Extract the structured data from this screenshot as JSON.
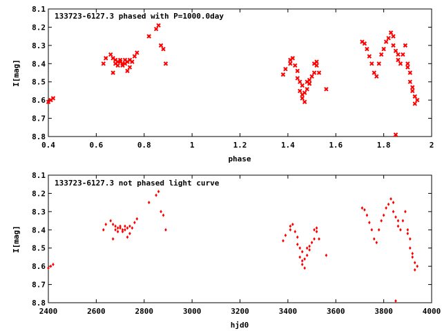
{
  "chart_data": [
    {
      "type": "scatter",
      "title": "133723-6127.3 phased with P=1000.0day",
      "xlabel": "phase",
      "ylabel": "I[mag]",
      "xlim": [
        0.4,
        2.0
      ],
      "ylim": [
        8.1,
        8.8
      ],
      "y_inverted": true,
      "xticks": [
        "0.4",
        "0.6",
        "0.8",
        "1",
        "1.2",
        "1.4",
        "1.6",
        "1.8",
        "2"
      ],
      "yticks": [
        "8.1",
        "8.2",
        "8.3",
        "8.4",
        "8.5",
        "8.6",
        "8.7",
        "8.8"
      ],
      "grid": false,
      "color": "#ff0000",
      "series": [
        {
          "x": [
            0.4,
            0.41,
            0.42,
            0.63,
            0.64,
            0.66,
            0.67,
            0.67,
            0.68,
            0.68,
            0.69,
            0.69,
            0.7,
            0.7,
            0.71,
            0.71,
            0.72,
            0.72,
            0.73,
            0.73,
            0.74,
            0.74,
            0.75,
            0.76,
            0.77,
            0.82,
            0.85,
            0.86,
            0.87,
            0.88,
            0.89,
            1.38,
            1.39,
            1.41,
            1.41,
            1.42,
            1.43,
            1.44,
            1.44,
            1.45,
            1.45,
            1.46,
            1.46,
            1.46,
            1.47,
            1.47,
            1.48,
            1.48,
            1.49,
            1.49,
            1.5,
            1.51,
            1.51,
            1.52,
            1.52,
            1.53,
            1.56,
            1.71,
            1.72,
            1.73,
            1.74,
            1.75,
            1.76,
            1.77,
            1.78,
            1.79,
            1.8,
            1.81,
            1.82,
            1.83,
            1.84,
            1.84,
            1.85,
            1.85,
            1.86,
            1.86,
            1.87,
            1.88,
            1.89,
            1.9,
            1.9,
            1.91,
            1.91,
            1.92,
            1.92,
            1.93,
            1.93,
            1.94
          ],
          "y": [
            8.61,
            8.6,
            8.59,
            8.4,
            8.37,
            8.35,
            8.45,
            8.37,
            8.38,
            8.4,
            8.39,
            8.41,
            8.39,
            8.38,
            8.4,
            8.41,
            8.38,
            8.4,
            8.44,
            8.39,
            8.38,
            8.42,
            8.39,
            8.36,
            8.34,
            8.25,
            8.21,
            8.19,
            8.3,
            8.32,
            8.4,
            8.46,
            8.43,
            8.38,
            8.4,
            8.37,
            8.41,
            8.44,
            8.48,
            8.5,
            8.55,
            8.57,
            8.52,
            8.59,
            8.61,
            8.56,
            8.5,
            8.54,
            8.51,
            8.49,
            8.47,
            8.45,
            8.4,
            8.39,
            8.41,
            8.45,
            8.54,
            8.28,
            8.29,
            8.32,
            8.36,
            8.4,
            8.45,
            8.47,
            8.4,
            8.35,
            8.32,
            8.28,
            8.26,
            8.23,
            8.25,
            8.3,
            8.79,
            8.33,
            8.35,
            8.38,
            8.4,
            8.35,
            8.3,
            8.4,
            8.42,
            8.45,
            8.5,
            8.53,
            8.55,
            8.58,
            8.62,
            8.6
          ]
        }
      ]
    },
    {
      "type": "scatter",
      "title": "133723-6127.3 not phased light curve",
      "xlabel": "hjd0",
      "ylabel": "I[mag]",
      "xlim": [
        2400,
        4000
      ],
      "ylim": [
        8.1,
        8.8
      ],
      "y_inverted": true,
      "xticks": [
        "2400",
        "2600",
        "2800",
        "3000",
        "3200",
        "3400",
        "3600",
        "3800",
        "4000"
      ],
      "yticks": [
        "8.1",
        "8.2",
        "8.3",
        "8.4",
        "8.5",
        "8.6",
        "8.7",
        "8.8"
      ],
      "grid": false,
      "color": "#ff0000",
      "series": [
        {
          "x": [
            2400,
            2410,
            2420,
            2630,
            2640,
            2660,
            2670,
            2670,
            2680,
            2680,
            2690,
            2690,
            2700,
            2700,
            2710,
            2710,
            2720,
            2720,
            2730,
            2730,
            2740,
            2740,
            2750,
            2760,
            2770,
            2820,
            2850,
            2860,
            2870,
            2880,
            2890,
            3380,
            3390,
            3410,
            3410,
            3420,
            3430,
            3440,
            3440,
            3450,
            3450,
            3460,
            3460,
            3460,
            3470,
            3470,
            3480,
            3480,
            3490,
            3490,
            3500,
            3510,
            3510,
            3520,
            3520,
            3530,
            3560,
            3710,
            3720,
            3730,
            3740,
            3750,
            3760,
            3770,
            3780,
            3790,
            3800,
            3810,
            3820,
            3830,
            3840,
            3840,
            3850,
            3850,
            3860,
            3860,
            3870,
            3880,
            3890,
            3900,
            3900,
            3910,
            3910,
            3920,
            3920,
            3930,
            3930,
            3940
          ],
          "y": [
            8.61,
            8.6,
            8.59,
            8.4,
            8.37,
            8.35,
            8.45,
            8.37,
            8.38,
            8.4,
            8.39,
            8.41,
            8.39,
            8.38,
            8.4,
            8.41,
            8.38,
            8.4,
            8.44,
            8.39,
            8.38,
            8.42,
            8.39,
            8.36,
            8.34,
            8.25,
            8.21,
            8.19,
            8.3,
            8.32,
            8.4,
            8.46,
            8.43,
            8.38,
            8.4,
            8.37,
            8.41,
            8.44,
            8.48,
            8.5,
            8.55,
            8.57,
            8.52,
            8.59,
            8.61,
            8.56,
            8.5,
            8.54,
            8.51,
            8.49,
            8.47,
            8.45,
            8.4,
            8.39,
            8.41,
            8.45,
            8.54,
            8.28,
            8.29,
            8.32,
            8.36,
            8.4,
            8.45,
            8.47,
            8.4,
            8.35,
            8.32,
            8.28,
            8.26,
            8.23,
            8.25,
            8.3,
            8.79,
            8.33,
            8.35,
            8.38,
            8.4,
            8.35,
            8.3,
            8.4,
            8.42,
            8.45,
            8.5,
            8.53,
            8.55,
            8.58,
            8.62,
            8.6
          ]
        }
      ]
    }
  ]
}
